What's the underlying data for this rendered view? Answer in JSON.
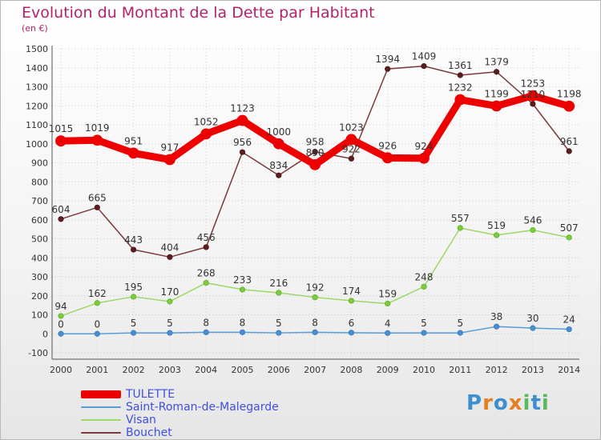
{
  "chart_data": {
    "type": "line",
    "title": "Evolution du Montant de la Dette par Habitant",
    "unit": "(en €)",
    "xlabel": "",
    "ylabel": "",
    "ylim": [
      -100,
      1500
    ],
    "yticks": [
      -100,
      0,
      100,
      200,
      300,
      400,
      500,
      600,
      700,
      800,
      900,
      1000,
      1100,
      1200,
      1300,
      1400,
      1500
    ],
    "x": [
      "2000",
      "2001",
      "2002",
      "2003",
      "2004",
      "2005",
      "2006",
      "2007",
      "2008",
      "2009",
      "2010",
      "2011",
      "2012",
      "2013",
      "2014"
    ],
    "grid": true,
    "legend_position": "bottom-left",
    "series": [
      {
        "name": "TULETTE",
        "color": "#ee0000",
        "values": [
          1015,
          1019,
          951,
          917,
          1052,
          1123,
          1000,
          890,
          1023,
          926,
          924,
          1232,
          1199,
          1253,
          1198
        ],
        "labels": [
          "1015",
          "1019",
          "951",
          "917",
          "1052",
          "1123",
          "1000",
          "890",
          "1023",
          "926",
          "924",
          "1232",
          "1199",
          "1253",
          "1198"
        ]
      },
      {
        "name": "Saint-Roman-de-Malegarde",
        "color": "#5b9bd5",
        "values": [
          0,
          0,
          5,
          5,
          8,
          8,
          5,
          8,
          6,
          4,
          5,
          5,
          38,
          30,
          24
        ],
        "labels": [
          "0",
          "0",
          "5",
          "5",
          "8",
          "8",
          "5",
          "8",
          "6",
          "4",
          "5",
          "5",
          "38",
          "30",
          "24"
        ]
      },
      {
        "name": "Visan",
        "color": "#9ed66a",
        "values": [
          94,
          162,
          195,
          170,
          268,
          233,
          216,
          192,
          174,
          159,
          248,
          557,
          519,
          546,
          507
        ],
        "labels": [
          "94",
          "162",
          "195",
          "170",
          "268",
          "233",
          "216",
          "192",
          "174",
          "159",
          "248",
          "557",
          "519",
          "546",
          "507"
        ]
      },
      {
        "name": "Bouchet",
        "color": "#7a3b3b",
        "values": [
          604,
          665,
          443,
          404,
          456,
          956,
          834,
          958,
          922,
          1394,
          1409,
          1361,
          1379,
          1210,
          961
        ],
        "labels": [
          "604",
          "665",
          "443",
          "404",
          "456",
          "956",
          "834",
          "958",
          "922",
          "1394",
          "1409",
          "1361",
          "1379",
          "1210",
          "961"
        ]
      }
    ]
  },
  "logo": {
    "text": "Proxiti"
  }
}
